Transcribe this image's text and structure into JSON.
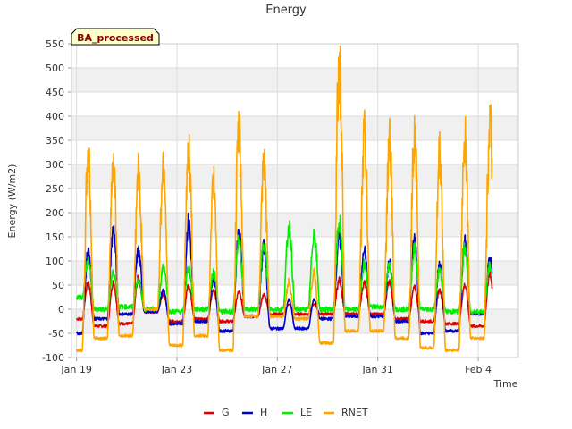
{
  "chart_data": {
    "type": "line",
    "title": "Energy",
    "badge": "BA_processed",
    "xlabel": "Time",
    "ylabel": "Energy (W/m2)",
    "ylim": [
      -100,
      550
    ],
    "xlim": [
      -0.2,
      17.6
    ],
    "y_ticks": [
      -100,
      -50,
      0,
      50,
      100,
      150,
      200,
      250,
      300,
      350,
      400,
      450,
      500,
      550
    ],
    "x_ticks": [
      {
        "label": "Jan 19",
        "value": 0
      },
      {
        "label": "Jan 23",
        "value": 4
      },
      {
        "label": "Jan 27",
        "value": 8
      },
      {
        "label": "Jan 31",
        "value": 12
      },
      {
        "label": "Feb 4",
        "value": 16
      }
    ],
    "grid": true,
    "legend_position": "bottom",
    "days": [
      {
        "rnet_peak": 320,
        "h_peak": 125,
        "le_peak": 100,
        "g_peak": 55,
        "rnet_night": -85,
        "h_night": -50,
        "le_night": 25,
        "g_night": -20
      },
      {
        "rnet_peak": 310,
        "h_peak": 165,
        "le_peak": 75,
        "g_peak": 55,
        "rnet_night": -60,
        "h_night": -20,
        "le_night": 0,
        "g_night": -35
      },
      {
        "rnet_peak": 280,
        "h_peak": 120,
        "le_peak": 60,
        "g_peak": 65,
        "rnet_night": -55,
        "h_night": -10,
        "le_night": 5,
        "g_night": -30
      },
      {
        "rnet_peak": 310,
        "h_peak": 40,
        "le_peak": 90,
        "g_peak": 30,
        "rnet_night": 0,
        "h_night": -5,
        "le_night": 0,
        "g_night": -5
      },
      {
        "rnet_peak": 340,
        "h_peak": 180,
        "le_peak": 85,
        "g_peak": 50,
        "rnet_night": -75,
        "h_night": -30,
        "le_night": -5,
        "g_night": -25
      },
      {
        "rnet_peak": 260,
        "h_peak": 65,
        "le_peak": 75,
        "g_peak": 40,
        "rnet_night": -55,
        "h_night": -25,
        "le_night": 0,
        "g_night": -20
      },
      {
        "rnet_peak": 365,
        "h_peak": 160,
        "le_peak": 145,
        "g_peak": 35,
        "rnet_night": -85,
        "h_night": -45,
        "le_night": -5,
        "g_night": -25
      },
      {
        "rnet_peak": 290,
        "h_peak": 130,
        "le_peak": 140,
        "g_peak": 30,
        "rnet_night": -15,
        "h_night": -15,
        "le_night": 0,
        "g_night": -15
      },
      {
        "rnet_peak": 55,
        "h_peak": 20,
        "le_peak": 170,
        "g_peak": 10,
        "rnet_night": -15,
        "h_night": -40,
        "le_night": 0,
        "g_night": -10
      },
      {
        "rnet_peak": 80,
        "h_peak": 20,
        "le_peak": 160,
        "g_peak": 10,
        "rnet_night": -20,
        "h_night": -40,
        "le_night": 0,
        "g_night": -10
      },
      {
        "rnet_peak": 520,
        "h_peak": 150,
        "le_peak": 180,
        "g_peak": 60,
        "rnet_night": -70,
        "h_night": -20,
        "le_night": 0,
        "g_night": -10
      },
      {
        "rnet_peak": 365,
        "h_peak": 120,
        "le_peak": 95,
        "g_peak": 55,
        "rnet_night": -45,
        "h_night": -15,
        "le_night": 0,
        "g_night": -10
      },
      {
        "rnet_peak": 345,
        "h_peak": 95,
        "le_peak": 90,
        "g_peak": 55,
        "rnet_night": -45,
        "h_night": -15,
        "le_night": 5,
        "g_night": -10
      },
      {
        "rnet_peak": 375,
        "h_peak": 145,
        "le_peak": 125,
        "g_peak": 45,
        "rnet_night": -60,
        "h_night": -25,
        "le_night": 0,
        "g_night": -20
      },
      {
        "rnet_peak": 320,
        "h_peak": 95,
        "le_peak": 80,
        "g_peak": 40,
        "rnet_night": -80,
        "h_night": -50,
        "le_night": 0,
        "g_night": -25
      },
      {
        "rnet_peak": 365,
        "h_peak": 140,
        "le_peak": 125,
        "g_peak": 50,
        "rnet_night": -85,
        "h_night": -45,
        "le_night": -5,
        "g_night": -30
      },
      {
        "rnet_peak": 380,
        "h_peak": 100,
        "le_peak": 90,
        "g_peak": 75,
        "rnet_night": -60,
        "h_night": -10,
        "le_night": -5,
        "g_night": -35
      }
    ],
    "series": [
      {
        "name": "G",
        "key": "g",
        "color": "#dd0000"
      },
      {
        "name": "H",
        "key": "h",
        "color": "#0000cc"
      },
      {
        "name": "LE",
        "key": "le",
        "color": "#00ee00"
      },
      {
        "name": "RNET",
        "key": "rnet",
        "color": "#ffa500"
      }
    ]
  }
}
